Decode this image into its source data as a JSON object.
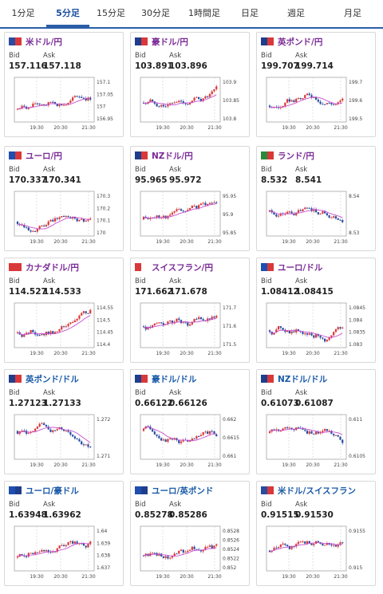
{
  "tabs": [
    "1分足",
    "5分足",
    "15分足",
    "30分足",
    "1時間足",
    "日足",
    "週足",
    "月足"
  ],
  "active_tab": 1,
  "labels": {
    "bid": "Bid",
    "ask": "Ask"
  },
  "cards": [
    {
      "name": "米ドル/円",
      "bid": "157.116",
      "ask": "157.118",
      "flag": [
        "#2a4ca0",
        "#d9383a"
      ],
      "ticks": [
        "157.1",
        "157.05",
        "157",
        "156.95"
      ],
      "times": [
        "19:30",
        "20:30",
        "21:30"
      ]
    },
    {
      "name": "豪ドル/円",
      "bid": "103.891",
      "ask": "103.896",
      "flag": [
        "#1e3e8c",
        "#d9383a"
      ],
      "ticks": [
        "103.9",
        "103.85",
        "103.8"
      ],
      "times": [
        "19:30",
        "20:30",
        "21:30"
      ]
    },
    {
      "name": "英ポンド/円",
      "bid": "199.707",
      "ask": "199.714",
      "flag": [
        "#1e3e8c",
        "#d9383a"
      ],
      "ticks": [
        "199.7",
        "199.6",
        "199.5"
      ],
      "times": [
        "19:30",
        "20:30",
        "21:30"
      ]
    },
    {
      "name": "ユーロ/円",
      "bid": "170.337",
      "ask": "170.341",
      "flag": [
        "#1e4fb0",
        "#d9383a"
      ],
      "ticks": [
        "170.3",
        "170.2",
        "170.1",
        "170"
      ],
      "times": [
        "19:30",
        "20:30",
        "21:30"
      ]
    },
    {
      "name": "NZドル/円",
      "bid": "95.965",
      "ask": "95.972",
      "flag": [
        "#1e3e8c",
        "#d9383a"
      ],
      "ticks": [
        "95.95",
        "95.9",
        "95.85"
      ],
      "times": [
        "19:30",
        "20:30",
        "21:30"
      ]
    },
    {
      "name": "ランド/円",
      "bid": "8.532",
      "ask": "8.541",
      "flag": [
        "#2a8a3a",
        "#d9383a"
      ],
      "ticks": [
        "8.54",
        "8.53"
      ],
      "times": [
        "19:30",
        "20:30",
        "21:30"
      ]
    },
    {
      "name": "カナダドル/円",
      "bid": "114.527",
      "ask": "114.533",
      "flag": [
        "#d9383a",
        "#d9383a"
      ],
      "ticks": [
        "114.55",
        "114.5",
        "114.45",
        "114.4"
      ],
      "times": [
        "19:30",
        "20:30",
        "21:30"
      ]
    },
    {
      "name": "スイスフラン/円",
      "bid": "171.662",
      "ask": "171.678",
      "flag": [
        "#d9383a",
        "#ffffff"
      ],
      "ticks": [
        "171.7",
        "171.6",
        "171.5"
      ],
      "times": [
        "19:30",
        "20:30",
        "21:30"
      ]
    },
    {
      "name": "ユーロ/ドル",
      "bid": "1.08412",
      "ask": "1.08415",
      "flag": [
        "#1e4fb0",
        "#d9383a"
      ],
      "ticks": [
        "1.0845",
        "1.084",
        "1.0835",
        "1.083"
      ],
      "times": [
        "19:30",
        "20:30",
        "21:30"
      ]
    },
    {
      "name": "英ポンド/ドル",
      "bid": "1.27123",
      "ask": "1.27133",
      "flag": [
        "#1e3e8c",
        "#d9383a"
      ],
      "ticks": [
        "1.272",
        "1.271"
      ],
      "times": [
        "19:30",
        "20:30",
        "21:30"
      ]
    },
    {
      "name": "豪ドル/ドル",
      "bid": "0.66122",
      "ask": "0.66126",
      "flag": [
        "#1e3e8c",
        "#d9383a"
      ],
      "ticks": [
        "0.662",
        "0.6615",
        "0.661"
      ],
      "times": [
        "19:30",
        "20:30",
        "21:30"
      ]
    },
    {
      "name": "NZドル/ドル",
      "bid": "0.61073",
      "ask": "0.61087",
      "flag": [
        "#1e3e8c",
        "#d9383a"
      ],
      "ticks": [
        "0.611",
        "0.6105"
      ],
      "times": [
        "19:30",
        "20:30",
        "21:30"
      ]
    },
    {
      "name": "ユーロ/豪ドル",
      "bid": "1.63948",
      "ask": "1.63962",
      "flag": [
        "#1e4fb0",
        "#1e3e8c"
      ],
      "ticks": [
        "1.64",
        "1.639",
        "1.638",
        "1.637"
      ],
      "times": [
        "19:30",
        "20:30",
        "21:30"
      ]
    },
    {
      "name": "ユーロ/英ポンド",
      "bid": "0.85278",
      "ask": "0.85286",
      "flag": [
        "#1e4fb0",
        "#1e3e8c"
      ],
      "ticks": [
        "0.8528",
        "0.8526",
        "0.8524",
        "0.8522",
        "0.852"
      ],
      "times": [
        "19:30",
        "20:30",
        "21:30"
      ]
    },
    {
      "name": "米ドル/スイスフラン",
      "bid": "0.91515",
      "ask": "0.91530",
      "flag": [
        "#2a4ca0",
        "#d9383a"
      ],
      "ticks": [
        "0.9155",
        "0.915"
      ],
      "times": [
        "19:30",
        "20:30",
        "21:30"
      ]
    }
  ],
  "colors": {
    "accent": "#2a5ea8",
    "up": "#d9383a",
    "down": "#2a4ca0",
    "ma": "#c84fd0",
    "pair_jpy": "#7a2a96",
    "pair_usd": "#1a5aa8"
  }
}
